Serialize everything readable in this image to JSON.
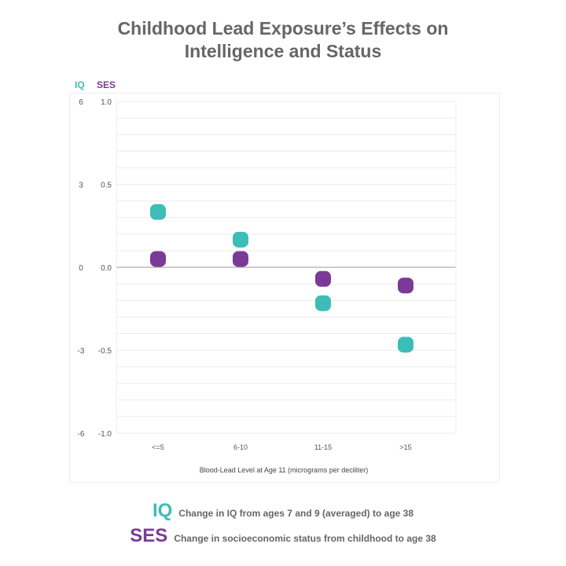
{
  "chart_data": {
    "type": "scatter",
    "title_line1": "Childhood Lead Exposure’s Effects on",
    "title_line2": "Intelligence and Status",
    "xlabel": "Blood-Lead Level at Age 11 (micrograms per deciliter)",
    "categories": [
      "<=5",
      "6-10",
      "11-15",
      ">15"
    ],
    "left_axis": {
      "label": "IQ",
      "ylim": [
        -6,
        6
      ],
      "ticks": [
        "6",
        "3",
        "0",
        "-3",
        "-6"
      ],
      "tick_values": [
        6,
        3,
        0,
        -3,
        -6
      ]
    },
    "right_axis": {
      "label": "SES",
      "ylim": [
        -1.0,
        1.0
      ],
      "ticks": [
        "1.0",
        "0.5",
        "0.0",
        "-0.5",
        "-1.0"
      ],
      "tick_values": [
        1.0,
        0.5,
        0.0,
        -0.5,
        -1.0
      ]
    },
    "grid": true,
    "series": [
      {
        "name": "IQ",
        "axis": "left",
        "color": "#3dbdb8",
        "values": [
          2.0,
          1.0,
          -1.3,
          -2.8
        ]
      },
      {
        "name": "SES",
        "axis": "right",
        "color": "#7b3a97",
        "values": [
          0.05,
          0.05,
          -0.07,
          -0.11
        ]
      }
    ],
    "legend": [
      {
        "key": "IQ",
        "text": "Change in IQ from ages 7 and 9 (averaged) to age 38",
        "color": "#3dbdb8"
      },
      {
        "key": "SES",
        "text": "Change in socioeconomic status from childhood to age 38",
        "color": "#7b3a97"
      }
    ],
    "legend_position": "bottom"
  }
}
